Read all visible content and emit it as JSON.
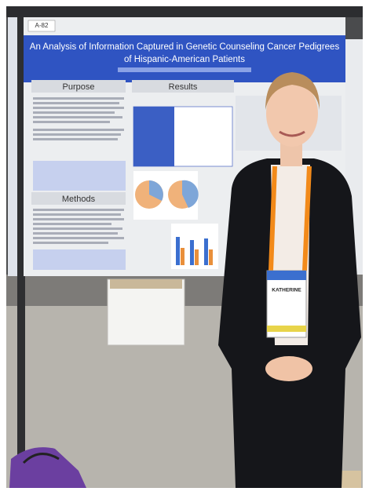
{
  "poster": {
    "tag": "A-82",
    "title_lines": [
      "An Analysis of Information Captured in Genetic Counseling Cancer Pedigrees",
      "of Hispanic-American Patients"
    ],
    "sections": [
      "Purpose",
      "Results",
      "Methods"
    ]
  },
  "badge": {
    "name": "KATHERINE"
  }
}
